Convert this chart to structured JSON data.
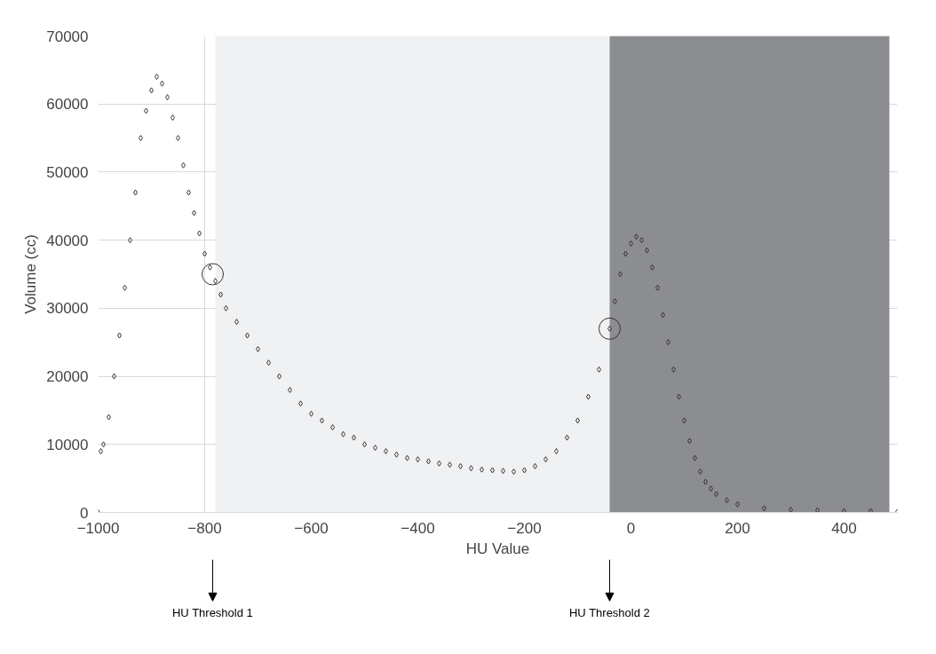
{
  "chart_data": {
    "type": "scatter",
    "xlabel": "HU Value",
    "ylabel": "Volume (cc)",
    "x": [
      -1000,
      -995,
      -990,
      -980,
      -970,
      -960,
      -950,
      -940,
      -930,
      -920,
      -910,
      -900,
      -890,
      -880,
      -870,
      -860,
      -850,
      -840,
      -830,
      -820,
      -810,
      -800,
      -790,
      -780,
      -770,
      -760,
      -740,
      -720,
      -700,
      -680,
      -660,
      -640,
      -620,
      -600,
      -580,
      -560,
      -540,
      -520,
      -500,
      -480,
      -460,
      -440,
      -420,
      -400,
      -380,
      -360,
      -340,
      -320,
      -300,
      -280,
      -260,
      -240,
      -220,
      -200,
      -180,
      -160,
      -140,
      -120,
      -100,
      -80,
      -60,
      -40,
      -30,
      -20,
      -10,
      0,
      10,
      20,
      30,
      40,
      50,
      60,
      70,
      80,
      90,
      100,
      110,
      120,
      130,
      140,
      150,
      160,
      180,
      200,
      250,
      300,
      350,
      400,
      450,
      500
    ],
    "series": [
      {
        "color": "#333333",
        "marker": "diamond",
        "values": [
          0,
          9000,
          10000,
          14000,
          20000,
          26000,
          33000,
          40000,
          47000,
          55000,
          59000,
          62000,
          64000,
          63000,
          61000,
          58000,
          55000,
          51000,
          47000,
          44000,
          41000,
          38000,
          36000,
          34000,
          32000,
          30000,
          28000,
          26000,
          24000,
          22000,
          20000,
          18000,
          16000,
          14500,
          13500,
          12500,
          11500,
          11000,
          10000,
          9500,
          9000,
          8500,
          8000,
          7800,
          7500,
          7200,
          7000,
          6800,
          6500,
          6300,
          6200,
          6100,
          6000,
          6200,
          6800,
          7800,
          9000,
          11000,
          13500,
          17000,
          21000,
          27000,
          31000,
          35000,
          38000,
          39500,
          40500,
          40000,
          38500,
          36000,
          33000,
          29000,
          25000,
          21000,
          17000,
          13500,
          10500,
          8000,
          6000,
          4500,
          3500,
          2700,
          1800,
          1200,
          600,
          400,
          300,
          200,
          200,
          100
        ]
      },
      {
        "color": "#333333",
        "marker": "circle",
        "x": [
          -785,
          -40
        ],
        "values": [
          35000,
          27000
        ]
      }
    ],
    "xlim": [
      -1000,
      500
    ],
    "ylim": [
      0,
      70000
    ],
    "xticks": [
      -1000,
      -800,
      -600,
      -400,
      -200,
      0,
      200,
      400
    ],
    "yticks": [
      0,
      10000,
      20000,
      30000,
      40000,
      50000,
      60000,
      70000
    ],
    "grid": true,
    "bands": [
      {
        "axis": "x",
        "from": -780,
        "to": -40,
        "color": "#f0f1f3"
      },
      {
        "axis": "x",
        "from": -40,
        "to": 485,
        "color": "#8c8d91"
      }
    ],
    "annotations": [
      "HU Threshold 1",
      "HU Threshold 2"
    ]
  }
}
